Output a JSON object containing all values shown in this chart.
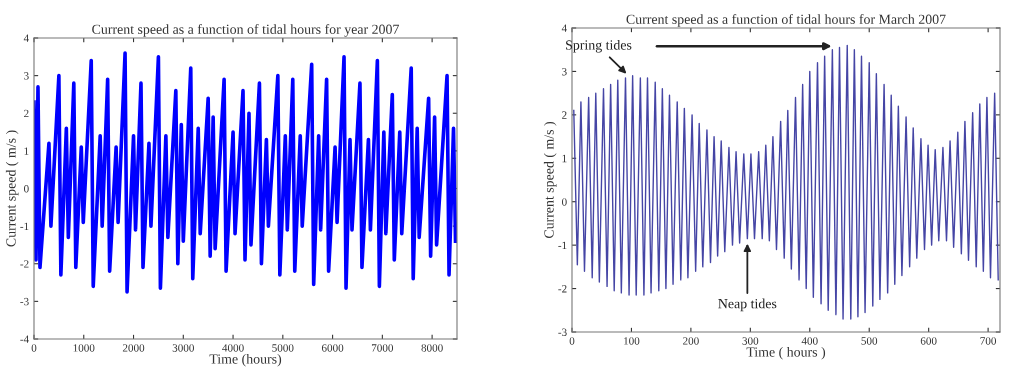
{
  "chart_data": [
    {
      "type": "line",
      "title": "Current speed as a function of tidal hours for year 2007",
      "xlabel": "Time (hours)",
      "ylabel": "Current speed ( m/s )",
      "xlim": [
        0,
        8500
      ],
      "xticks": [
        0,
        1000,
        2000,
        3000,
        4000,
        5000,
        6000,
        7000,
        8000
      ],
      "ylim": [
        -4,
        4
      ],
      "yticks": [
        -4,
        -3,
        -2,
        -1,
        0,
        1,
        2,
        3,
        4
      ],
      "grid": false,
      "line_style": "solid",
      "marker": "none",
      "series": [
        {
          "color": "#0000ff",
          "x": [
            0,
            40,
            80,
            120,
            300,
            340,
            500,
            540,
            650,
            690,
            800,
            840,
            950,
            990,
            1150,
            1190,
            1330,
            1370,
            1480,
            1520,
            1650,
            1690,
            1830,
            1870,
            2000,
            2040,
            2150,
            2190,
            2310,
            2350,
            2500,
            2540,
            2650,
            2690,
            2850,
            2890,
            2960,
            3000,
            3150,
            3190,
            3300,
            3340,
            3500,
            3540,
            3600,
            3640,
            3820,
            3860,
            4000,
            4040,
            4200,
            4240,
            4320,
            4360,
            4530,
            4570,
            4670,
            4710,
            4900,
            4940,
            5050,
            5090,
            5200,
            5240,
            5350,
            5390,
            5580,
            5620,
            5720,
            5760,
            5880,
            5920,
            6050,
            6090,
            6230,
            6270,
            6350,
            6390,
            6550,
            6590,
            6720,
            6760,
            6900,
            6940,
            7030,
            7070,
            7200,
            7240,
            7350,
            7390,
            7580,
            7620,
            7700,
            7740,
            7930,
            7970,
            8050,
            8090,
            8300,
            8340,
            8430,
            8470
          ],
          "values": [
            2.3,
            -1.9,
            2.7,
            -2.1,
            1.2,
            -1.0,
            3.0,
            -2.3,
            1.6,
            -1.3,
            2.8,
            -2.1,
            1.1,
            -0.9,
            3.4,
            -2.6,
            1.4,
            -1.0,
            2.9,
            -2.2,
            1.1,
            -0.9,
            3.6,
            -2.75,
            1.4,
            -1.1,
            2.8,
            -2.1,
            1.2,
            -1.0,
            3.5,
            -2.65,
            1.4,
            -1.3,
            2.6,
            -2.0,
            1.7,
            -1.4,
            3.2,
            -2.4,
            1.6,
            -1.2,
            2.4,
            -1.8,
            1.9,
            -1.6,
            2.9,
            -2.2,
            1.5,
            -1.2,
            2.6,
            -1.9,
            2.0,
            -1.5,
            2.8,
            -2.0,
            1.3,
            -1.0,
            3.0,
            -2.3,
            1.4,
            -1.1,
            2.9,
            -2.2,
            1.4,
            -1.0,
            3.3,
            -2.55,
            1.4,
            -1.1,
            2.9,
            -2.2,
            1.1,
            -0.9,
            3.5,
            -2.65,
            1.3,
            -1.1,
            2.8,
            -2.1,
            1.3,
            -1.1,
            3.4,
            -2.6,
            1.5,
            -1.2,
            2.5,
            -1.9,
            1.5,
            -1.2,
            3.2,
            -2.4,
            1.6,
            -1.3,
            2.4,
            -1.8,
            1.9,
            -1.5,
            3.0,
            -2.3,
            1.6,
            -1.4
          ]
        }
      ]
    },
    {
      "type": "line",
      "title": "Current speed as a function of tidal hours for March 2007",
      "xlabel": "Time ( hours )",
      "ylabel": "Current speed ( m/s )",
      "xlim": [
        0,
        720
      ],
      "xticks": [
        0,
        100,
        200,
        300,
        400,
        500,
        600,
        700
      ],
      "ylim": [
        -3,
        4
      ],
      "yticks": [
        -3,
        -2,
        -1,
        0,
        1,
        2,
        3,
        4
      ],
      "grid": false,
      "line_style": "solid",
      "marker": "none",
      "annotations": [
        {
          "text": "Spring tides",
          "x": 95,
          "y": 2.9
        },
        {
          "text": "Neap tides",
          "x": 295,
          "y": -0.9
        }
      ],
      "series": [
        {
          "color": "#4545a5",
          "x": [
            3,
            9,
            15,
            21,
            28,
            34,
            40,
            46,
            53,
            59,
            65,
            71,
            77,
            83,
            90,
            96,
            102,
            108,
            115,
            121,
            127,
            133,
            140,
            146,
            152,
            158,
            164,
            170,
            177,
            183,
            189,
            195,
            202,
            208,
            214,
            220,
            227,
            233,
            239,
            245,
            251,
            257,
            264,
            270,
            276,
            282,
            289,
            295,
            301,
            307,
            314,
            320,
            326,
            332,
            338,
            344,
            351,
            357,
            363,
            369,
            376,
            382,
            388,
            394,
            400,
            406,
            413,
            419,
            425,
            431,
            438,
            444,
            450,
            456,
            463,
            469,
            475,
            481,
            487,
            493,
            500,
            506,
            512,
            518,
            525,
            531,
            537,
            543,
            549,
            555,
            562,
            568,
            574,
            580,
            587,
            593,
            599,
            605,
            611,
            617,
            624,
            630,
            636,
            642,
            649,
            655,
            661,
            667,
            674,
            680,
            686,
            692,
            698,
            704,
            711,
            717
          ],
          "values": [
            2.1,
            -1.45,
            2.3,
            -1.6,
            2.4,
            -1.75,
            2.5,
            -1.85,
            2.6,
            -1.95,
            2.7,
            -2.05,
            2.8,
            -2.1,
            2.85,
            -2.15,
            2.9,
            -2.15,
            2.85,
            -2.15,
            2.85,
            -2.1,
            2.75,
            -2.05,
            2.6,
            -2.0,
            2.45,
            -1.9,
            2.3,
            -1.8,
            2.15,
            -1.75,
            2.0,
            -1.6,
            1.8,
            -1.5,
            1.65,
            -1.4,
            1.5,
            -1.25,
            1.4,
            -1.15,
            1.25,
            -1.0,
            1.15,
            -0.95,
            1.1,
            -0.85,
            1.1,
            -0.85,
            1.15,
            -0.85,
            1.3,
            -0.9,
            1.5,
            -1.1,
            1.85,
            -1.3,
            2.1,
            -1.55,
            2.4,
            -1.8,
            2.7,
            -2.0,
            3.0,
            -2.2,
            3.2,
            -2.35,
            3.35,
            -2.5,
            3.5,
            -2.6,
            3.55,
            -2.7,
            3.6,
            -2.7,
            3.5,
            -2.65,
            3.35,
            -2.55,
            3.2,
            -2.4,
            2.95,
            -2.25,
            2.7,
            -2.1,
            2.45,
            -1.9,
            2.2,
            -1.7,
            1.95,
            -1.5,
            1.7,
            -1.3,
            1.45,
            -1.1,
            1.3,
            -1.0,
            1.2,
            -0.9,
            1.25,
            -0.9,
            1.4,
            -1.05,
            1.6,
            -1.2,
            1.85,
            -1.35,
            2.05,
            -1.5,
            2.25,
            -1.6,
            2.4,
            -1.75,
            2.5,
            -1.8
          ]
        }
      ]
    }
  ]
}
